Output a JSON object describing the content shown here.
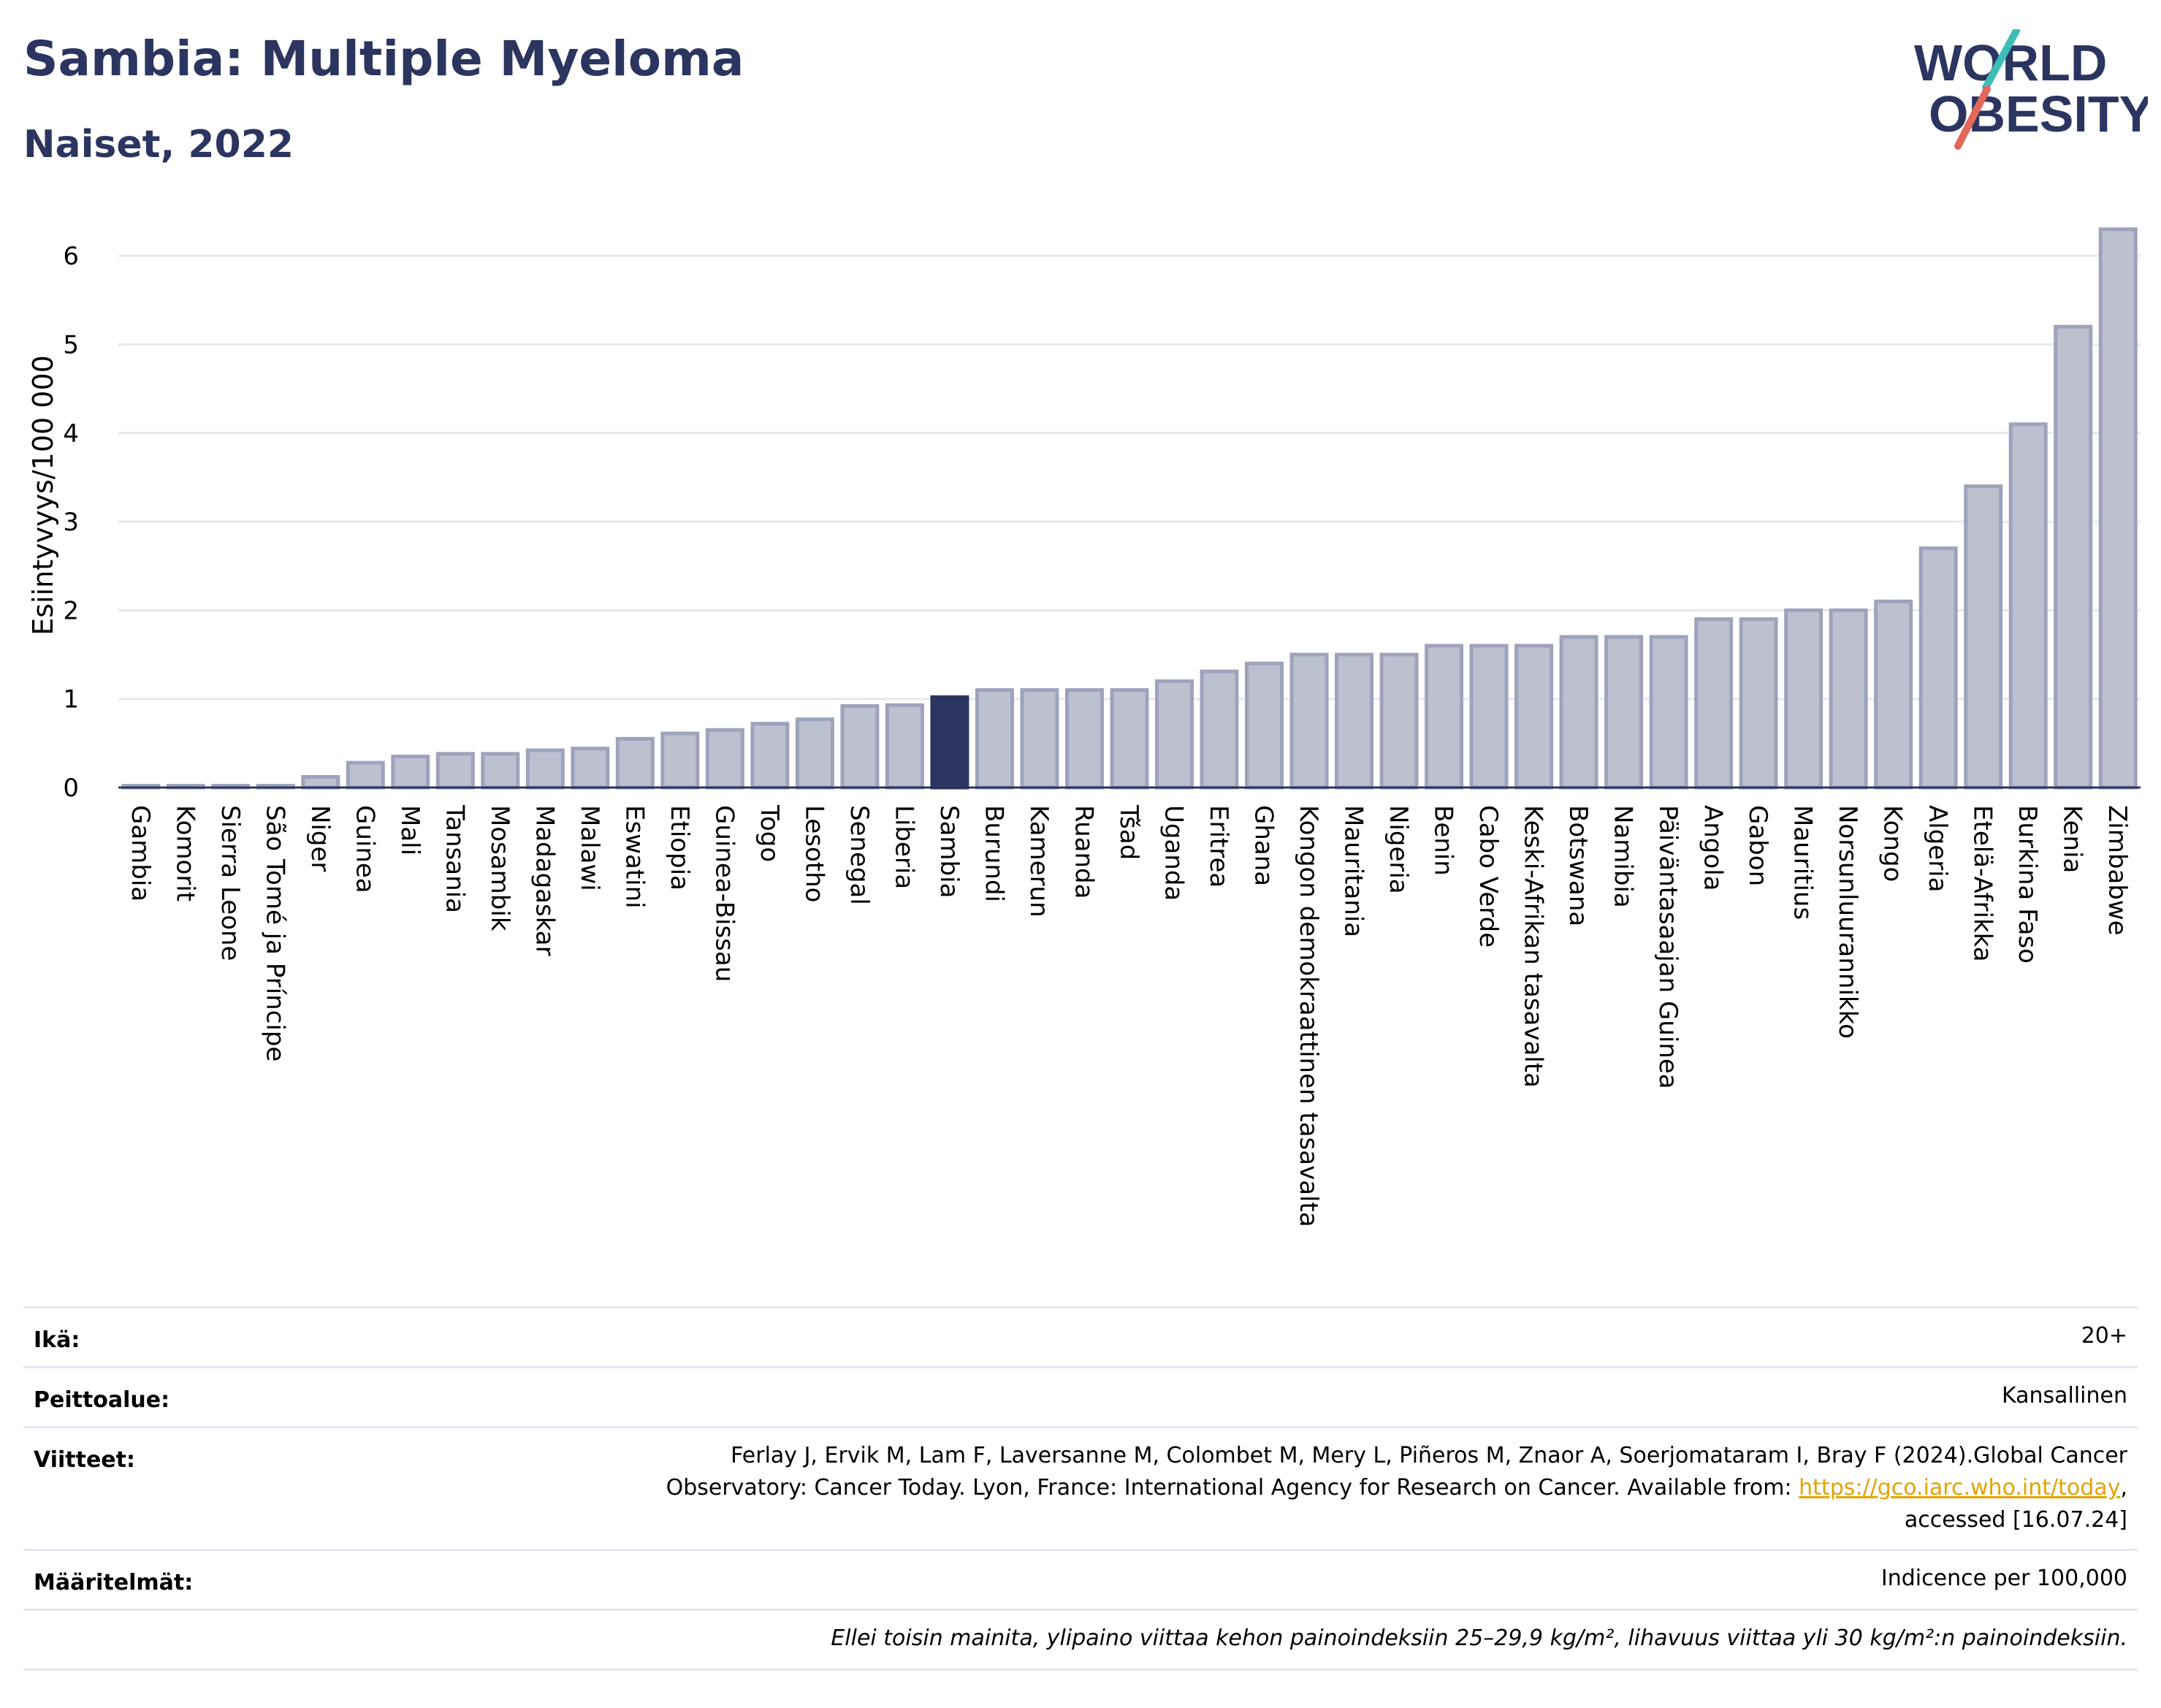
{
  "header": {
    "title": "Sambia: Multiple Myeloma",
    "subtitle": "Naiset, 2022"
  },
  "logo": {
    "line1": "WORLD",
    "line2": "OBESITY",
    "colors": {
      "text": "#2b3560",
      "slash_teal": "#3dbdb8",
      "slash_red": "#e3685a"
    }
  },
  "colors": {
    "bar": "#bcc0cf",
    "bar_stroke": "#9ea3bb",
    "highlight": "#2b3560",
    "grid": "#e6e8f0",
    "axis": "#2b3560"
  },
  "chart_data": {
    "type": "bar",
    "ylabel": "Esiintyvyys/100 000",
    "ylim": [
      0,
      6.6
    ],
    "yticks": [
      "0",
      "1",
      "2",
      "3",
      "4",
      "5",
      "6"
    ],
    "grid": true,
    "highlight_category": "Sambia",
    "categories": [
      "Gambia",
      "Komorit",
      "Sierra Leone",
      "São Tomé ja Príncipe",
      "Niger",
      "Guinea",
      "Mali",
      "Tansania",
      "Mosambik",
      "Madagaskar",
      "Malawi",
      "Eswatini",
      "Etiopia",
      "Guinea-Bissau",
      "Togo",
      "Lesotho",
      "Senegal",
      "Liberia",
      "Sambia",
      "Burundi",
      "Kamerun",
      "Ruanda",
      "Tšad",
      "Uganda",
      "Eritrea",
      "Ghana",
      "Kongon demokraattinen tasavalta",
      "Mauritania",
      "Nigeria",
      "Benin",
      "Cabo Verde",
      "Keski-Afrikan tasavalta",
      "Botswana",
      "Namibia",
      "Päiväntasaajan Guinea",
      "Angola",
      "Gabon",
      "Mauritius",
      "Norsunluurannikko",
      "Kongo",
      "Algeria",
      "Etelä-Afrikka",
      "Burkina Faso",
      "Kenia",
      "Zimbabwe"
    ],
    "values": [
      0.02,
      0.02,
      0.02,
      0.02,
      0.12,
      0.28,
      0.35,
      0.38,
      0.38,
      0.42,
      0.44,
      0.55,
      0.61,
      0.65,
      0.72,
      0.77,
      0.92,
      0.93,
      1.02,
      1.1,
      1.1,
      1.1,
      1.1,
      1.2,
      1.31,
      1.4,
      1.5,
      1.5,
      1.5,
      1.6,
      1.6,
      1.6,
      1.7,
      1.7,
      1.7,
      1.9,
      1.9,
      2.0,
      2.0,
      2.1,
      2.7,
      3.4,
      4.1,
      5.2,
      6.3
    ]
  },
  "meta": {
    "age": {
      "label": "Ikä:",
      "value": "20+"
    },
    "coverage": {
      "label": "Peittoalue:",
      "value": "Kansallinen"
    },
    "references": {
      "label": "Viitteet:",
      "line1": "Ferlay J, Ervik M, Lam F, Laversanne M, Colombet M, Mery L, Piñeros M, Znaor A, Soerjomataram I, Bray F (2024).Global Cancer",
      "line2_prefix": "Observatory: Cancer Today. Lyon, France: International Agency for Research on Cancer. Available from: ",
      "link": "https://gco.iarc.who.int/today",
      "line2_suffix": ",",
      "line3": "accessed [16.07.24]"
    },
    "definitions": {
      "label": "Määritelmät:",
      "value": "Indicence per 100,000"
    },
    "note": "Ellei toisin mainita, ylipaino viittaa kehon painoindeksiin 25–29,9 kg/m², lihavuus viittaa yli 30 kg/m²:n painoindeksiin."
  }
}
